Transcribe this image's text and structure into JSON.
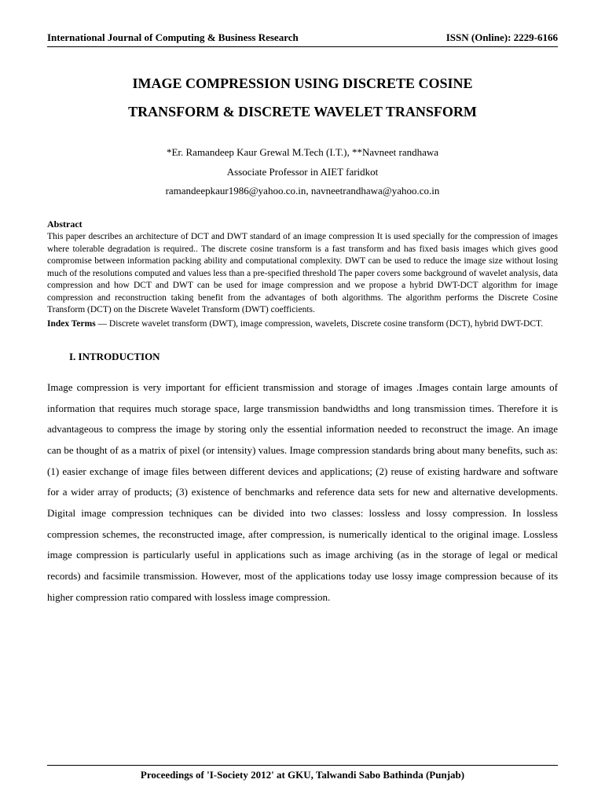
{
  "header": {
    "journal": "International Journal of Computing & Business Research",
    "issn": "ISSN (Online): 2229-6166"
  },
  "title": {
    "line1": "IMAGE COMPRESSION USING DISCRETE COSINE",
    "line2": "TRANSFORM & DISCRETE WAVELET TRANSFORM"
  },
  "authors": {
    "line1": "*Er. Ramandeep Kaur Grewal M.Tech (I.T.), **Navneet randhawa",
    "line2": "Associate Professor in AIET faridkot",
    "line3": "ramandeepkaur1986@yahoo.co.in, navneetrandhawa@yahoo.co.in"
  },
  "abstract": {
    "heading": "Abstract",
    "body": "This paper describes an architecture of DCT and DWT standard of an image compression It is used specially for the compression of images where tolerable degradation is required.. The discrete cosine transform is a fast transform and has fixed basis images which gives good compromise between information packing ability and computational complexity. DWT can be used to reduce the image size without losing much of the resolutions computed and values less than a pre-specified threshold The paper covers some background of wavelet analysis, data compression and how DCT and DWT can be used for image compression and we propose a hybrid DWT-DCT algorithm for image compression and reconstruction taking benefit from the advantages of both algorithms. The algorithm performs the Discrete Cosine Transform (DCT) on the Discrete Wavelet Transform (DWT) coefficients.",
    "index_label": "Index Terms",
    "index_body": " — Discrete wavelet transform (DWT), image compression, wavelets, Discrete cosine transform (DCT), hybrid DWT-DCT."
  },
  "section1": {
    "heading": "I.   INTRODUCTION",
    "body": "Image compression is very important for efficient transmission and storage of images .Images contain large amounts of information that requires much storage space, large transmission bandwidths and long transmission times. Therefore it is advantageous to compress the image by storing only the essential information needed to reconstruct the image. An image can be thought of as a matrix of pixel (or intensity) values. Image compression standards bring about many benefits, such as: (1) easier exchange of image files between different devices and applications; (2) reuse of existing hardware and software for a wider array of products; (3) existence of benchmarks and reference data sets for new and alternative developments. Digital image compression techniques can be divided into two classes: lossless and lossy compression. In lossless compression schemes, the reconstructed image, after compression, is numerically identical to the original image. Lossless image compression is particularly useful in applications such as image archiving (as in the storage of legal or medical records) and facsimile transmission. However, most of the applications today use lossy image compression because of its higher compression ratio compared with lossless image compression."
  },
  "footer": {
    "text": "Proceedings of 'I-Society 2012' at GKU, Talwandi Sabo Bathinda (Punjab)"
  }
}
